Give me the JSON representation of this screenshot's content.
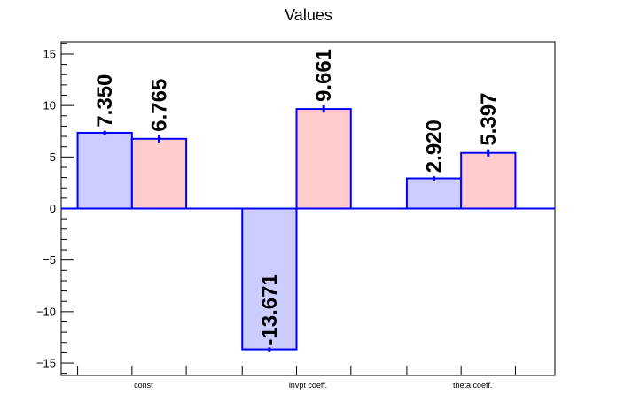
{
  "chart_data": {
    "type": "bar",
    "title": "Values",
    "categories": [
      "const",
      "invpt coeff.",
      "theta coeff."
    ],
    "series": [
      {
        "values": [
          7.35,
          -13.671,
          2.92
        ],
        "labels": [
          "7.350",
          "-13.671",
          "2.920"
        ],
        "errors": [
          0.2,
          0.2,
          0.2
        ],
        "fill": "#ccccff",
        "stroke": "#0000ff"
      },
      {
        "values": [
          6.765,
          9.661,
          5.397
        ],
        "labels": [
          "6.765",
          "9.661",
          "5.397"
        ],
        "errors": [
          0.35,
          0.35,
          0.35
        ],
        "fill": "#ffcccc",
        "stroke": "#0000ff"
      }
    ],
    "ylim": [
      -16.2,
      16.2
    ],
    "yticks": [
      -15,
      -10,
      -5,
      0,
      5,
      10,
      15
    ],
    "ytick_labels": [
      "−15",
      "−10",
      "−5",
      "0",
      "5",
      "10",
      "15"
    ],
    "grid": false,
    "legend": "none",
    "colors": {
      "axis": "#000000",
      "zero_line": "#0000ff"
    }
  }
}
